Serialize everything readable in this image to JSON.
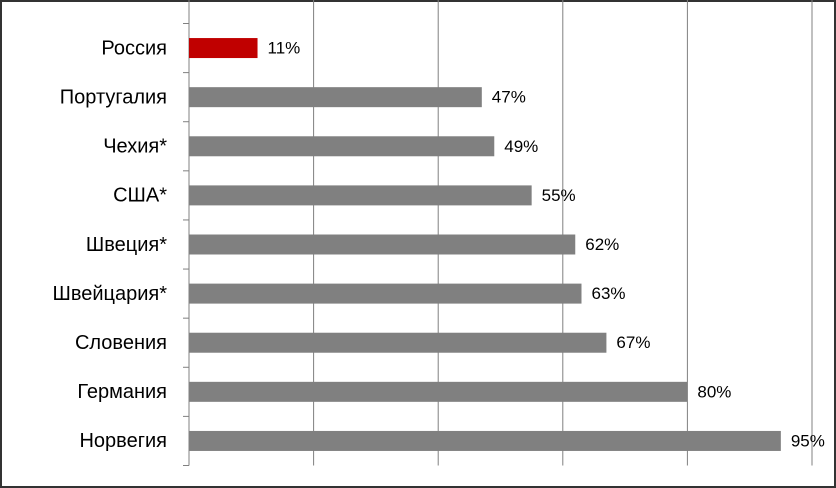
{
  "chart_data": {
    "type": "bar",
    "orientation": "horizontal",
    "categories": [
      "Россия",
      "Португалия",
      "Чехия*",
      "США*",
      "Швеция*",
      "Швейцария*",
      "Словения",
      "Германия",
      "Норвегия"
    ],
    "values": [
      11,
      47,
      49,
      55,
      62,
      63,
      67,
      80,
      95
    ],
    "value_labels": [
      "11%",
      "47%",
      "49%",
      "55%",
      "62%",
      "63%",
      "67%",
      "80%",
      "95%"
    ],
    "colors": [
      "#c00000",
      "#808080",
      "#808080",
      "#808080",
      "#808080",
      "#808080",
      "#808080",
      "#808080",
      "#808080"
    ],
    "xlim": [
      0,
      100
    ],
    "xticks": [
      0,
      20,
      40,
      60,
      80,
      100
    ],
    "grid": true
  }
}
